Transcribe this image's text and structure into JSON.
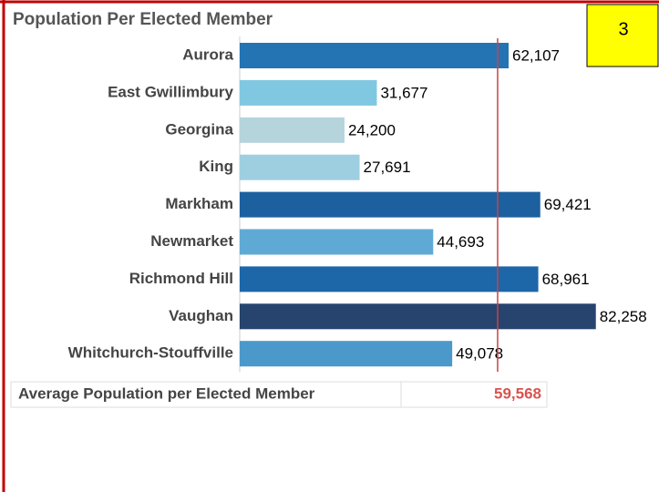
{
  "chart_data": {
    "type": "bar",
    "orientation": "horizontal",
    "title": "Population Per Elected Member",
    "categories": [
      "Aurora",
      "East Gwillimbury",
      "Georgina",
      "King",
      "Markham",
      "Newmarket",
      "Richmond Hill",
      "Vaughan",
      "Whitchurch-Stouffville"
    ],
    "values": [
      62107,
      31677,
      24200,
      27691,
      69421,
      44693,
      68961,
      82258,
      49078
    ],
    "value_labels": [
      "62,107",
      "31,677",
      "24,200",
      "27,691",
      "69,421",
      "44,693",
      "68,961",
      "82,258",
      "49,078"
    ],
    "colors": [
      "#2474b3",
      "#80c8e1",
      "#b5d4dc",
      "#9ecfe0",
      "#1d609f",
      "#5faad4",
      "#1d66a7",
      "#26446e",
      "#4b98ca"
    ],
    "xlim": [
      0,
      90000
    ],
    "reference_line": {
      "value": 59568,
      "color": "#d04040"
    },
    "summary": {
      "label": "Average Population per Elected Member",
      "value": 59568,
      "value_label": "59,568"
    },
    "badge": "3"
  }
}
